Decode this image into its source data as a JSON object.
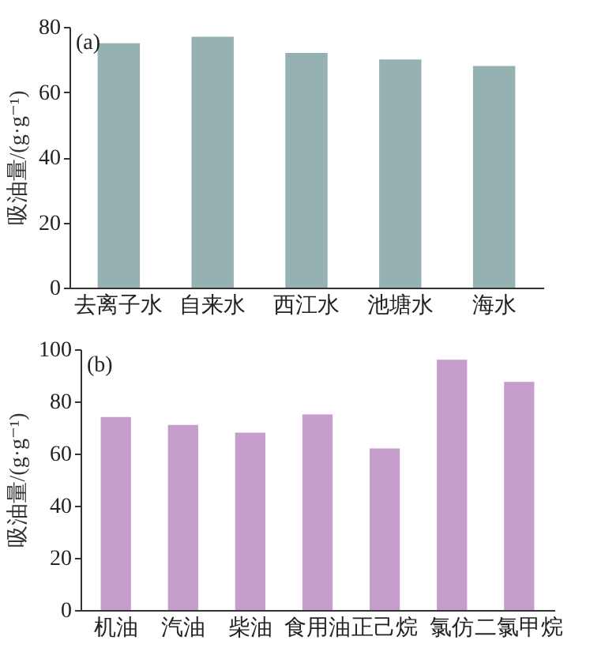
{
  "chart_data": [
    {
      "type": "bar",
      "ylabel": "吸油量/(g·g⁻¹)",
      "annotations": [
        "(a)"
      ],
      "categories": [
        "去离子水",
        "自来水",
        "西江水",
        "池塘水",
        "海水"
      ],
      "series": [
        {
          "color": "#96b1b1",
          "values": [
            75,
            77,
            72,
            70,
            68
          ]
        }
      ],
      "ylim": [
        0,
        80
      ],
      "yticks": [
        0,
        20,
        40,
        60,
        80
      ],
      "grid": false,
      "legend": false
    },
    {
      "type": "bar",
      "ylabel": "吸油量/(g·g⁻¹)",
      "annotations": [
        "(b)"
      ],
      "categories": [
        "机油",
        "汽油",
        "柴油",
        "食用油",
        "正己烷",
        "氯仿",
        "二氯甲烷"
      ],
      "series": [
        {
          "color": "#c59ecb",
          "values": [
            74,
            71,
            68,
            75,
            62,
            96,
            87.5
          ]
        }
      ],
      "ylim": [
        0,
        100
      ],
      "yticks": [
        0,
        20,
        40,
        60,
        80,
        100
      ],
      "grid": false,
      "legend": false
    }
  ]
}
